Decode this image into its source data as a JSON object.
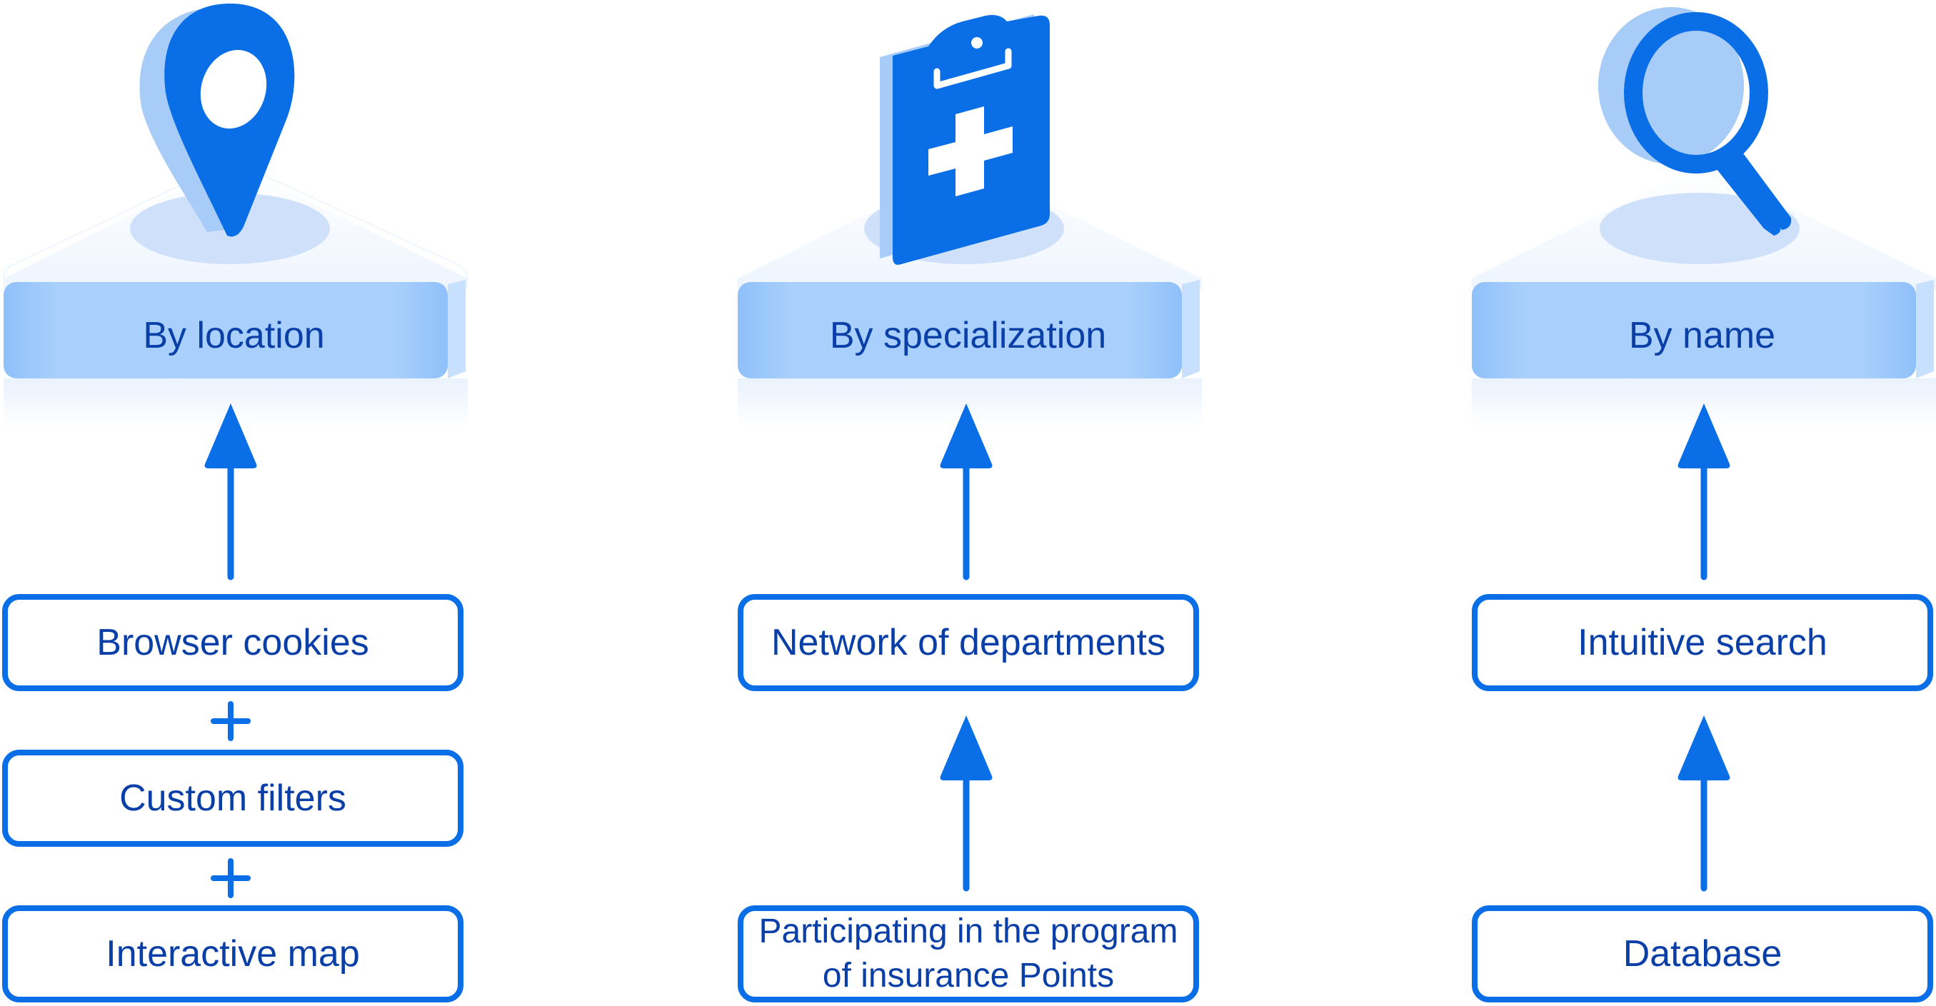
{
  "colors": {
    "accent": "#0a6ee6",
    "text": "#0b3fa8",
    "platform_top": "#f3f8ff",
    "platform_band": "#9cc8fb",
    "icon_shadow": "#a7ccf8"
  },
  "columns": [
    {
      "category": "By location",
      "icon": "location-pin-icon",
      "items": [
        "Browser cookies",
        "Custom filters",
        "Interactive map"
      ],
      "connectors": [
        "plus",
        "plus"
      ]
    },
    {
      "category": "By specialization",
      "icon": "medical-clipboard-icon",
      "items": [
        "Network of departments",
        "Participating in the program of insurance Points"
      ],
      "connectors": [
        "arrow-up"
      ]
    },
    {
      "category": "By name",
      "icon": "magnifier-icon",
      "items": [
        "Intuitive search",
        "Database"
      ],
      "connectors": [
        "arrow-up"
      ]
    }
  ]
}
